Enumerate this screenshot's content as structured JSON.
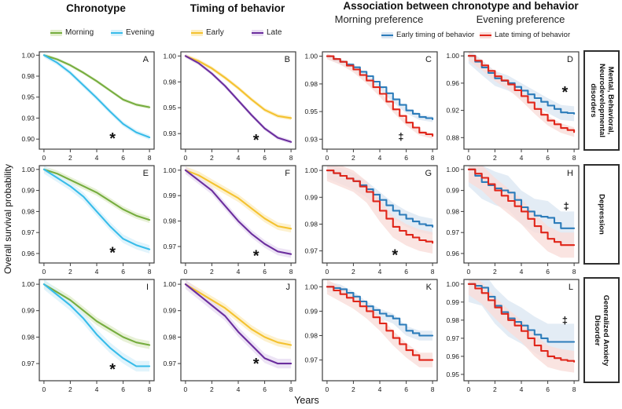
{
  "header": {
    "col1_title": "Chronotype",
    "col2_title": "Timing of behavior",
    "assoc_title": "Association between chronotype  and behavior",
    "assoc_sub_left": "Morning preference",
    "assoc_sub_right": "Evening preference"
  },
  "axes": {
    "ylabel": "Overall survival probability",
    "xlabel": "Years"
  },
  "row_labels": [
    "Mental, Behavioral, Neurodevelopmental disorders",
    "Depression",
    "Generalized Anxiety Disorder"
  ],
  "legend_groups": [
    {
      "items": [
        {
          "label": "Morning",
          "color": "#76ad3f",
          "band": "#e2eecd"
        },
        {
          "label": "Evening",
          "color": "#38bce9",
          "band": "#d9f1fb"
        }
      ]
    },
    {
      "items": [
        {
          "label": "Early",
          "color": "#f4c230",
          "band": "#fdeec2"
        },
        {
          "label": "Late",
          "color": "#6b2e9e",
          "band": "#e9ddf2"
        }
      ]
    },
    {
      "items": [
        {
          "label": "Early timing of behavior",
          "color": "#2c7cba",
          "band": "#dce7f3"
        },
        {
          "label": "Late timing of behavior",
          "color": "#e02519",
          "band": "#f9ddd9"
        }
      ]
    }
  ],
  "chart_data": [
    {
      "id": "A",
      "row": 0,
      "col": 0,
      "type": "line",
      "x": [
        0,
        1,
        2,
        3,
        4,
        5,
        6,
        7,
        8
      ],
      "ylim": [
        0.888,
        1.004
      ],
      "yticks": [
        1.0,
        0.975,
        0.95,
        0.925,
        0.9
      ],
      "ytick_labels": [
        "1.00",
        "0.98",
        "0.95",
        "0.93",
        "0.90"
      ],
      "xticks": [
        0,
        2,
        4,
        6,
        8
      ],
      "series": [
        {
          "name": "Morning",
          "color": "#76ad3f",
          "band": "#e2eecd",
          "ci": 0.002,
          "step": false,
          "values": [
            1.0,
            0.995,
            0.988,
            0.979,
            0.969,
            0.958,
            0.947,
            0.941,
            0.938
          ]
        },
        {
          "name": "Evening",
          "color": "#38bce9",
          "band": "#d9f1fb",
          "ci": 0.003,
          "step": false,
          "values": [
            1.0,
            0.991,
            0.979,
            0.964,
            0.949,
            0.933,
            0.918,
            0.908,
            0.902
          ]
        }
      ],
      "annotation": {
        "symbol": "*",
        "x": 5.2,
        "y": 0.906
      }
    },
    {
      "id": "B",
      "row": 0,
      "col": 1,
      "type": "line",
      "x": [
        0,
        1,
        2,
        3,
        4,
        5,
        6,
        7,
        8
      ],
      "ylim": [
        0.91,
        1.004
      ],
      "yticks": [
        1.0,
        0.975,
        0.95,
        0.925
      ],
      "ytick_labels": [
        "1.00",
        "0.98",
        "0.95",
        "0.93"
      ],
      "xticks": [
        0,
        2,
        4,
        6,
        8
      ],
      "series": [
        {
          "name": "Early",
          "color": "#f4c230",
          "band": "#fdeec2",
          "ci": 0.002,
          "step": false,
          "values": [
            1.0,
            0.995,
            0.988,
            0.979,
            0.969,
            0.958,
            0.948,
            0.942,
            0.94
          ]
        },
        {
          "name": "Late",
          "color": "#6b2e9e",
          "band": "#e9ddf2",
          "ci": 0.002,
          "step": false,
          "values": [
            1.0,
            0.993,
            0.983,
            0.971,
            0.957,
            0.943,
            0.93,
            0.921,
            0.917
          ]
        }
      ],
      "annotation": {
        "symbol": "*",
        "x": 5.35,
        "y": 0.923
      }
    },
    {
      "id": "C",
      "row": 0,
      "col": 2,
      "type": "line",
      "x": [
        0,
        1,
        2,
        3,
        4,
        5,
        6,
        7,
        8
      ],
      "ylim": [
        0.916,
        1.004
      ],
      "yticks": [
        1.0,
        0.975,
        0.95,
        0.925
      ],
      "ytick_labels": [
        "1.00",
        "0.98",
        "0.95",
        "0.93"
      ],
      "xticks": [
        0,
        2,
        4,
        6,
        8
      ],
      "series": [
        {
          "name": "Early timing of behavior",
          "color": "#2c7cba",
          "band": "#dce7f3",
          "ci": 0.0025,
          "step": true,
          "values": [
            1.0,
            0.995,
            0.99,
            0.982,
            0.972,
            0.961,
            0.951,
            0.945,
            0.943
          ]
        },
        {
          "name": "Late timing of behavior",
          "color": "#e02519",
          "band": "#f9ddd9",
          "ci": 0.0025,
          "step": true,
          "values": [
            1.0,
            0.995,
            0.988,
            0.978,
            0.966,
            0.952,
            0.94,
            0.931,
            0.928
          ]
        }
      ],
      "annotation": {
        "symbol": "‡",
        "x": 5.6,
        "y": 0.9275
      }
    },
    {
      "id": "D",
      "row": 0,
      "col": 3,
      "type": "line",
      "x": [
        0,
        1,
        2,
        3,
        4,
        5,
        6,
        7,
        8
      ],
      "ylim": [
        0.863,
        1.006
      ],
      "yticks": [
        1.0,
        0.96,
        0.92,
        0.88
      ],
      "ytick_labels": [
        "1.00",
        "0.96",
        "0.92",
        "0.88"
      ],
      "xticks": [
        0,
        2,
        4,
        6,
        8
      ],
      "series": [
        {
          "name": "Early timing of behavior",
          "color": "#2c7cba",
          "band": "#dce7f3",
          "ci": 0.011,
          "step": true,
          "values": [
            1.0,
            0.983,
            0.967,
            0.96,
            0.949,
            0.938,
            0.927,
            0.917,
            0.915
          ]
        },
        {
          "name": "Late timing of behavior",
          "color": "#e02519",
          "band": "#f9ddd9",
          "ci": 0.007,
          "step": true,
          "values": [
            1.0,
            0.986,
            0.97,
            0.958,
            0.941,
            0.922,
            0.905,
            0.894,
            0.888
          ]
        }
      ],
      "annotation": {
        "symbol": "*",
        "x": 7.3,
        "y": 0.953
      }
    },
    {
      "id": "E",
      "row": 1,
      "col": 0,
      "type": "line",
      "x": [
        0,
        1,
        2,
        3,
        4,
        5,
        6,
        7,
        8
      ],
      "ylim": [
        0.9555,
        1.0018
      ],
      "yticks": [
        1.0,
        0.99,
        0.98,
        0.97,
        0.96
      ],
      "ytick_labels": [
        "1.00",
        "0.99",
        "0.98",
        "0.97",
        "0.96"
      ],
      "xticks": [
        0,
        2,
        4,
        6,
        8
      ],
      "series": [
        {
          "name": "Morning",
          "color": "#76ad3f",
          "band": "#e2eecd",
          "ci": 0.0015,
          "step": false,
          "values": [
            1.0,
            0.998,
            0.995,
            0.992,
            0.989,
            0.985,
            0.981,
            0.978,
            0.976
          ]
        },
        {
          "name": "Evening",
          "color": "#38bce9",
          "band": "#d9f1fb",
          "ci": 0.002,
          "step": false,
          "values": [
            1.0,
            0.996,
            0.992,
            0.987,
            0.98,
            0.973,
            0.967,
            0.964,
            0.962
          ]
        }
      ],
      "annotation": {
        "symbol": "*",
        "x": 5.2,
        "y": 0.9625
      }
    },
    {
      "id": "F",
      "row": 1,
      "col": 1,
      "type": "line",
      "x": [
        0,
        1,
        2,
        3,
        4,
        5,
        6,
        7,
        8
      ],
      "ylim": [
        0.9635,
        1.0018
      ],
      "yticks": [
        1.0,
        0.99,
        0.98,
        0.97
      ],
      "ytick_labels": [
        "1.00",
        "0.99",
        "0.98",
        "0.97"
      ],
      "xticks": [
        0,
        2,
        4,
        6,
        8
      ],
      "series": [
        {
          "name": "Early",
          "color": "#f4c230",
          "band": "#fdeec2",
          "ci": 0.0015,
          "step": false,
          "values": [
            1.0,
            0.998,
            0.995,
            0.992,
            0.989,
            0.985,
            0.981,
            0.978,
            0.977
          ]
        },
        {
          "name": "Late",
          "color": "#6b2e9e",
          "band": "#e9ddf2",
          "ci": 0.0015,
          "step": false,
          "values": [
            1.0,
            0.996,
            0.992,
            0.986,
            0.98,
            0.975,
            0.971,
            0.968,
            0.967
          ]
        }
      ],
      "annotation": {
        "symbol": "*",
        "x": 5.35,
        "y": 0.968
      }
    },
    {
      "id": "G",
      "row": 1,
      "col": 2,
      "type": "line",
      "x": [
        0,
        1,
        2,
        3,
        4,
        5,
        6,
        7,
        8
      ],
      "ylim": [
        0.9655,
        1.0018
      ],
      "yticks": [
        1.0,
        0.99,
        0.98,
        0.97
      ],
      "ytick_labels": [
        "1.00",
        "0.99",
        "0.98",
        "0.97"
      ],
      "xticks": [
        0,
        2,
        4,
        6,
        8
      ],
      "series": [
        {
          "name": "Early timing of behavior",
          "color": "#2c7cba",
          "band": "#dce7f3",
          "ci": 0.003,
          "step": true,
          "values": [
            1.0,
            0.998,
            0.996,
            0.993,
            0.989,
            0.985,
            0.982,
            0.98,
            0.979
          ]
        },
        {
          "name": "Late timing of behavior",
          "color": "#e02519",
          "band": "#f9ddd9",
          "ci": 0.004,
          "step": true,
          "values": [
            1.0,
            0.998,
            0.996,
            0.992,
            0.985,
            0.979,
            0.976,
            0.974,
            0.973
          ]
        }
      ],
      "annotation": {
        "symbol": "*",
        "x": 5.15,
        "y": 0.97
      }
    },
    {
      "id": "H",
      "row": 1,
      "col": 3,
      "type": "line",
      "x": [
        0,
        1,
        2,
        3,
        4,
        5,
        6,
        7,
        8
      ],
      "ylim": [
        0.9555,
        1.0018
      ],
      "yticks": [
        1.0,
        0.99,
        0.98,
        0.97,
        0.96
      ],
      "ytick_labels": [
        "1.00",
        "0.99",
        "0.98",
        "0.97",
        "0.96"
      ],
      "xticks": [
        0,
        2,
        4,
        6,
        8
      ],
      "series": [
        {
          "name": "Early timing of behavior",
          "color": "#2c7cba",
          "band": "#dce7f3",
          "ci": 0.008,
          "step": true,
          "values": [
            1.0,
            0.994,
            0.991,
            0.989,
            0.982,
            0.978,
            0.977,
            0.972,
            0.972
          ]
        },
        {
          "name": "Late timing of behavior",
          "color": "#e02519",
          "band": "#f9ddd9",
          "ci": 0.006,
          "step": true,
          "values": [
            1.0,
            0.996,
            0.99,
            0.985,
            0.98,
            0.973,
            0.967,
            0.964,
            0.964
          ]
        }
      ],
      "annotation": {
        "symbol": "‡",
        "x": 7.4,
        "y": 0.9825
      }
    },
    {
      "id": "I",
      "row": 2,
      "col": 0,
      "type": "line",
      "x": [
        0,
        1,
        2,
        3,
        4,
        5,
        6,
        7,
        8
      ],
      "ylim": [
        0.9635,
        1.0018
      ],
      "yticks": [
        1.0,
        0.99,
        0.98,
        0.97
      ],
      "ytick_labels": [
        "1.00",
        "0.99",
        "0.98",
        "0.97"
      ],
      "xticks": [
        0,
        2,
        4,
        6,
        8
      ],
      "series": [
        {
          "name": "Morning",
          "color": "#76ad3f",
          "band": "#e2eecd",
          "ci": 0.0015,
          "step": false,
          "values": [
            1.0,
            0.997,
            0.994,
            0.99,
            0.986,
            0.983,
            0.98,
            0.978,
            0.977
          ]
        },
        {
          "name": "Evening",
          "color": "#38bce9",
          "band": "#d9f1fb",
          "ci": 0.002,
          "step": false,
          "values": [
            1.0,
            0.996,
            0.992,
            0.987,
            0.981,
            0.976,
            0.972,
            0.969,
            0.969
          ]
        }
      ],
      "annotation": {
        "symbol": "*",
        "x": 5.2,
        "y": 0.9695
      }
    },
    {
      "id": "J",
      "row": 2,
      "col": 1,
      "type": "line",
      "x": [
        0,
        1,
        2,
        3,
        4,
        5,
        6,
        7,
        8
      ],
      "ylim": [
        0.9635,
        1.0018
      ],
      "yticks": [
        1.0,
        0.99,
        0.98,
        0.97
      ],
      "ytick_labels": [
        "1.00",
        "0.99",
        "0.98",
        "0.97"
      ],
      "xticks": [
        0,
        2,
        4,
        6,
        8
      ],
      "series": [
        {
          "name": "Early",
          "color": "#f4c230",
          "band": "#fdeec2",
          "ci": 0.0015,
          "step": false,
          "values": [
            1.0,
            0.997,
            0.994,
            0.991,
            0.987,
            0.983,
            0.98,
            0.978,
            0.977
          ]
        },
        {
          "name": "Late",
          "color": "#6b2e9e",
          "band": "#e9ddf2",
          "ci": 0.0018,
          "step": false,
          "values": [
            1.0,
            0.996,
            0.992,
            0.988,
            0.982,
            0.977,
            0.972,
            0.97,
            0.97
          ]
        }
      ],
      "annotation": {
        "symbol": "*",
        "x": 5.35,
        "y": 0.9715
      }
    },
    {
      "id": "K",
      "row": 2,
      "col": 2,
      "type": "line",
      "x": [
        0,
        1,
        2,
        3,
        4,
        5,
        6,
        7,
        8
      ],
      "ylim": [
        0.9615,
        1.003
      ],
      "yticks": [
        1.0,
        0.99,
        0.98,
        0.97
      ],
      "ytick_labels": [
        "1.00",
        "0.99",
        "0.98",
        "0.97"
      ],
      "xticks": [
        0,
        2,
        4,
        6,
        8
      ],
      "series": [
        {
          "name": "Early timing of behavior",
          "color": "#2c7cba",
          "band": "#dce7f3",
          "ci": 0.002,
          "step": true,
          "values": [
            1.0,
            0.999,
            0.996,
            0.992,
            0.989,
            0.987,
            0.982,
            0.98,
            0.98
          ]
        },
        {
          "name": "Late timing of behavior",
          "color": "#e02519",
          "band": "#f9ddd9",
          "ci": 0.003,
          "step": true,
          "values": [
            1.0,
            0.997,
            0.994,
            0.99,
            0.985,
            0.979,
            0.974,
            0.97,
            0.97
          ]
        }
      ],
      "annotation": null
    },
    {
      "id": "L",
      "row": 2,
      "col": 3,
      "type": "line",
      "x": [
        0,
        1,
        2,
        3,
        4,
        5,
        6,
        7,
        8
      ],
      "ylim": [
        0.9465,
        1.0025
      ],
      "yticks": [
        1.0,
        0.99,
        0.98,
        0.97,
        0.96,
        0.95
      ],
      "ytick_labels": [
        "1.00",
        "0.99",
        "0.98",
        "0.97",
        "0.96",
        "0.95"
      ],
      "xticks": [
        0,
        2,
        4,
        6,
        8
      ],
      "series": [
        {
          "name": "Early timing of behavior",
          "color": "#2c7cba",
          "band": "#dce7f3",
          "ci": 0.01,
          "step": true,
          "values": [
            1.0,
            0.998,
            0.988,
            0.981,
            0.977,
            0.972,
            0.968,
            0.968,
            0.968
          ]
        },
        {
          "name": "Late timing of behavior",
          "color": "#e02519",
          "band": "#f9ddd9",
          "ci": 0.006,
          "step": true,
          "values": [
            1.0,
            0.995,
            0.987,
            0.98,
            0.974,
            0.966,
            0.96,
            0.958,
            0.957
          ]
        }
      ],
      "annotation": {
        "symbol": "‡",
        "x": 7.3,
        "y": 0.98
      }
    }
  ]
}
